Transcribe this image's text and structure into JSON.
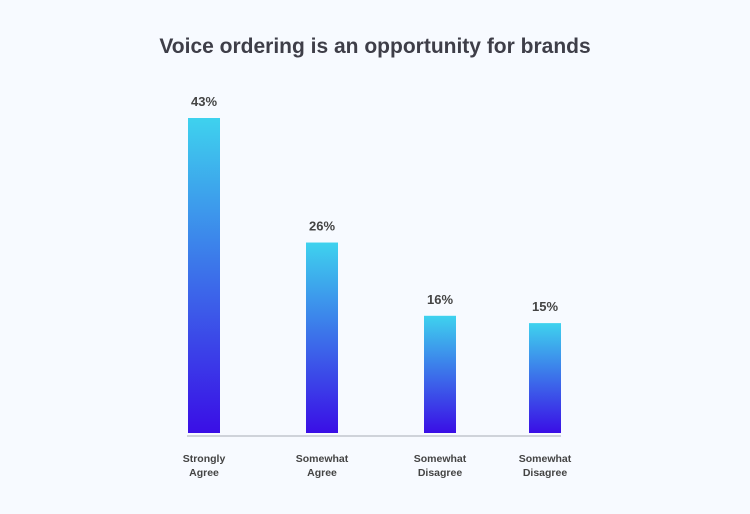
{
  "chart_data": {
    "type": "bar",
    "title": "Voice ordering is an opportunity for brands",
    "categories": [
      "Strongly Agree",
      "Somewhat Agree",
      "Somewhat Disagree",
      "Somewhat Disagree"
    ],
    "values": [
      43,
      26,
      16,
      15
    ],
    "value_labels": [
      "43%",
      "26%",
      "16%",
      "15%"
    ],
    "gradient": [
      "#3ed2ee",
      "#3a0ee6"
    ]
  }
}
